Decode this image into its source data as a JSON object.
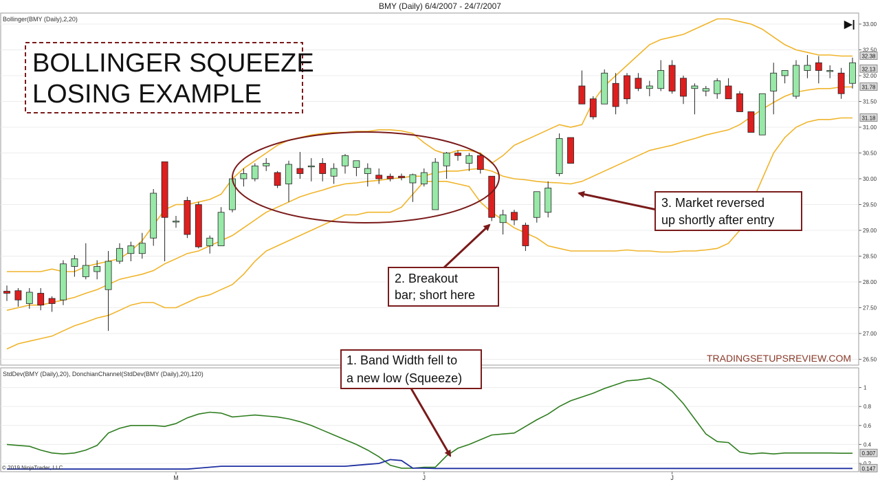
{
  "chart_data": {
    "type": "candlestick",
    "title": "BMY (Daily)  6/4/2007 - 24/7/2007",
    "price_panel": {
      "indicator_label": "Bollinger(BMY (Daily),2,20)",
      "ylim": [
        26.4,
        33.2
      ],
      "y_ticks": [
        "26.50",
        "27.00",
        "27.50",
        "28.00",
        "28.50",
        "29.00",
        "29.50",
        "30.00",
        "30.50",
        "31.00",
        "31.50",
        "32.00",
        "32.50",
        "33.00"
      ],
      "price_markers": [
        {
          "label": "32.38",
          "value": 32.38
        },
        {
          "label": "32.13",
          "value": 32.13
        },
        {
          "label": "31.78",
          "value": 31.78
        },
        {
          "label": "31.18",
          "value": 31.18
        }
      ],
      "candles": [
        {
          "o": 27.82,
          "h": 27.93,
          "l": 27.63,
          "c": 27.78
        },
        {
          "o": 27.83,
          "h": 27.88,
          "l": 27.52,
          "c": 27.65
        },
        {
          "o": 27.58,
          "h": 27.88,
          "l": 27.48,
          "c": 27.8
        },
        {
          "o": 27.78,
          "h": 27.88,
          "l": 27.45,
          "c": 27.55
        },
        {
          "o": 27.68,
          "h": 27.72,
          "l": 27.42,
          "c": 27.58
        },
        {
          "o": 27.65,
          "h": 28.42,
          "l": 27.55,
          "c": 28.35
        },
        {
          "o": 28.3,
          "h": 28.52,
          "l": 28.1,
          "c": 28.45
        },
        {
          "o": 28.1,
          "h": 28.75,
          "l": 28.05,
          "c": 28.32
        },
        {
          "o": 28.2,
          "h": 28.42,
          "l": 28.05,
          "c": 28.3
        },
        {
          "o": 27.85,
          "h": 28.6,
          "l": 27.05,
          "c": 28.4
        },
        {
          "o": 28.4,
          "h": 28.75,
          "l": 28.35,
          "c": 28.65
        },
        {
          "o": 28.55,
          "h": 28.78,
          "l": 28.4,
          "c": 28.7
        },
        {
          "o": 28.55,
          "h": 28.95,
          "l": 28.45,
          "c": 28.75
        },
        {
          "o": 28.85,
          "h": 29.8,
          "l": 28.7,
          "c": 29.72
        },
        {
          "o": 30.33,
          "h": 30.33,
          "l": 28.4,
          "c": 29.25
        },
        {
          "o": 29.18,
          "h": 29.28,
          "l": 29.05,
          "c": 29.18
        },
        {
          "o": 29.58,
          "h": 29.65,
          "l": 28.85,
          "c": 28.92
        },
        {
          "o": 29.5,
          "h": 29.55,
          "l": 28.65,
          "c": 28.68
        },
        {
          "o": 28.7,
          "h": 28.9,
          "l": 28.55,
          "c": 28.85
        },
        {
          "o": 28.7,
          "h": 29.45,
          "l": 28.7,
          "c": 29.35
        },
        {
          "o": 29.4,
          "h": 30.0,
          "l": 29.35,
          "c": 30.0
        },
        {
          "o": 30.0,
          "h": 30.2,
          "l": 29.85,
          "c": 30.1
        },
        {
          "o": 30.0,
          "h": 30.3,
          "l": 29.95,
          "c": 30.25
        },
        {
          "o": 30.25,
          "h": 30.4,
          "l": 30.15,
          "c": 30.3
        },
        {
          "o": 30.12,
          "h": 30.15,
          "l": 29.82,
          "c": 29.87
        },
        {
          "o": 29.9,
          "h": 30.35,
          "l": 29.55,
          "c": 30.28
        },
        {
          "o": 30.2,
          "h": 30.52,
          "l": 30.0,
          "c": 30.1
        },
        {
          "o": 30.25,
          "h": 30.4,
          "l": 29.95,
          "c": 30.25
        },
        {
          "o": 30.3,
          "h": 30.4,
          "l": 29.95,
          "c": 30.1
        },
        {
          "o": 30.05,
          "h": 30.3,
          "l": 29.9,
          "c": 30.2
        },
        {
          "o": 30.25,
          "h": 30.48,
          "l": 30.1,
          "c": 30.45
        },
        {
          "o": 30.22,
          "h": 30.35,
          "l": 30.05,
          "c": 30.35
        },
        {
          "o": 30.1,
          "h": 30.3,
          "l": 29.85,
          "c": 30.2
        },
        {
          "o": 30.07,
          "h": 30.2,
          "l": 29.9,
          "c": 30.0
        },
        {
          "o": 30.05,
          "h": 30.1,
          "l": 29.95,
          "c": 30.0
        },
        {
          "o": 30.05,
          "h": 30.1,
          "l": 29.97,
          "c": 30.02
        },
        {
          "o": 29.92,
          "h": 30.1,
          "l": 29.55,
          "c": 30.08
        },
        {
          "o": 29.9,
          "h": 30.2,
          "l": 29.85,
          "c": 30.12
        },
        {
          "o": 29.4,
          "h": 30.4,
          "l": 29.4,
          "c": 30.32
        },
        {
          "o": 30.25,
          "h": 30.52,
          "l": 30.0,
          "c": 30.5
        },
        {
          "o": 30.5,
          "h": 30.55,
          "l": 30.35,
          "c": 30.45
        },
        {
          "o": 30.3,
          "h": 30.5,
          "l": 30.15,
          "c": 30.45
        },
        {
          "o": 30.45,
          "h": 30.5,
          "l": 30.1,
          "c": 30.18
        },
        {
          "o": 30.05,
          "h": 30.05,
          "l": 29.18,
          "c": 29.25
        },
        {
          "o": 29.15,
          "h": 29.4,
          "l": 28.92,
          "c": 29.3
        },
        {
          "o": 29.35,
          "h": 29.4,
          "l": 29.1,
          "c": 29.2
        },
        {
          "o": 29.1,
          "h": 29.15,
          "l": 28.6,
          "c": 28.7
        },
        {
          "o": 29.25,
          "h": 29.75,
          "l": 29.15,
          "c": 29.75
        },
        {
          "o": 29.35,
          "h": 29.95,
          "l": 29.25,
          "c": 29.82
        },
        {
          "o": 30.1,
          "h": 30.88,
          "l": 30.05,
          "c": 30.78
        },
        {
          "o": 30.8,
          "h": 30.8,
          "l": 30.3,
          "c": 30.3
        },
        {
          "o": 31.8,
          "h": 32.1,
          "l": 31.5,
          "c": 31.45
        },
        {
          "o": 31.55,
          "h": 31.6,
          "l": 31.15,
          "c": 31.2
        },
        {
          "o": 31.45,
          "h": 32.12,
          "l": 31.45,
          "c": 32.05
        },
        {
          "o": 31.85,
          "h": 32.05,
          "l": 31.25,
          "c": 31.4
        },
        {
          "o": 32.0,
          "h": 32.05,
          "l": 31.45,
          "c": 31.55
        },
        {
          "o": 31.95,
          "h": 32.05,
          "l": 31.7,
          "c": 31.75
        },
        {
          "o": 31.75,
          "h": 31.9,
          "l": 31.6,
          "c": 31.8
        },
        {
          "o": 31.75,
          "h": 32.3,
          "l": 31.7,
          "c": 32.1
        },
        {
          "o": 32.2,
          "h": 32.3,
          "l": 31.65,
          "c": 31.7
        },
        {
          "o": 31.95,
          "h": 32.0,
          "l": 31.45,
          "c": 31.6
        },
        {
          "o": 31.75,
          "h": 31.85,
          "l": 31.25,
          "c": 31.8
        },
        {
          "o": 31.7,
          "h": 31.8,
          "l": 31.6,
          "c": 31.75
        },
        {
          "o": 31.65,
          "h": 31.95,
          "l": 31.55,
          "c": 31.9
        },
        {
          "o": 31.8,
          "h": 31.95,
          "l": 31.55,
          "c": 31.55
        },
        {
          "o": 31.65,
          "h": 31.7,
          "l": 31.3,
          "c": 31.3
        },
        {
          "o": 31.3,
          "h": 31.3,
          "l": 30.9,
          "c": 30.9
        },
        {
          "o": 30.85,
          "h": 31.65,
          "l": 30.85,
          "c": 31.65
        },
        {
          "o": 31.7,
          "h": 32.25,
          "l": 31.25,
          "c": 32.05
        },
        {
          "o": 32.0,
          "h": 32.1,
          "l": 31.85,
          "c": 32.1
        },
        {
          "o": 31.6,
          "h": 32.3,
          "l": 31.55,
          "c": 32.2
        },
        {
          "o": 32.1,
          "h": 32.4,
          "l": 31.95,
          "c": 32.2
        },
        {
          "o": 32.25,
          "h": 32.38,
          "l": 31.85,
          "c": 32.1
        },
        {
          "o": 32.1,
          "h": 32.2,
          "l": 31.95,
          "c": 32.1
        },
        {
          "o": 32.05,
          "h": 32.15,
          "l": 31.55,
          "c": 31.65
        },
        {
          "o": 31.85,
          "h": 32.35,
          "l": 31.75,
          "c": 32.25
        }
      ],
      "bollinger_upper": [
        28.2,
        28.2,
        28.2,
        28.2,
        28.25,
        28.2,
        28.2,
        28.3,
        28.35,
        28.4,
        28.45,
        28.6,
        28.8,
        29.1,
        29.4,
        29.5,
        29.5,
        29.55,
        29.6,
        29.7,
        30.0,
        30.2,
        30.35,
        30.5,
        30.65,
        30.75,
        30.8,
        30.85,
        30.88,
        30.9,
        30.9,
        30.92,
        30.92,
        30.95,
        30.95,
        30.93,
        30.88,
        30.7,
        30.55,
        30.48,
        30.55,
        30.55,
        30.5,
        30.3,
        30.45,
        30.65,
        30.75,
        30.85,
        30.95,
        31.05,
        31.0,
        31.05,
        31.5,
        31.8,
        32.0,
        32.2,
        32.4,
        32.6,
        32.7,
        32.75,
        32.8,
        32.9,
        33.0,
        33.1,
        33.1,
        33.05,
        33.0,
        32.9,
        32.75,
        32.6,
        32.5,
        32.45,
        32.4,
        32.4,
        32.38,
        32.38
      ],
      "bollinger_middle": [
        27.45,
        27.5,
        27.55,
        27.55,
        27.6,
        27.65,
        27.7,
        27.78,
        27.85,
        27.95,
        28.05,
        28.1,
        28.15,
        28.22,
        28.35,
        28.45,
        28.55,
        28.6,
        28.7,
        28.8,
        28.9,
        29.05,
        29.2,
        29.35,
        29.45,
        29.55,
        29.65,
        29.72,
        29.78,
        29.85,
        29.9,
        29.92,
        29.95,
        29.97,
        30.0,
        30.02,
        30.05,
        30.05,
        30.12,
        30.15,
        30.15,
        30.18,
        30.2,
        30.15,
        30.05,
        30.0,
        29.98,
        29.95,
        29.93,
        29.92,
        29.9,
        29.95,
        30.05,
        30.15,
        30.25,
        30.35,
        30.45,
        30.55,
        30.6,
        30.65,
        30.72,
        30.78,
        30.85,
        30.9,
        30.95,
        31.05,
        31.2,
        31.35,
        31.48,
        31.6,
        31.68,
        31.72,
        31.75,
        31.75,
        31.78,
        31.78
      ],
      "bollinger_lower": [
        26.7,
        26.8,
        26.85,
        26.9,
        26.95,
        27.05,
        27.15,
        27.22,
        27.3,
        27.35,
        27.45,
        27.55,
        27.6,
        27.6,
        27.5,
        27.5,
        27.6,
        27.7,
        27.75,
        27.85,
        27.95,
        28.15,
        28.4,
        28.6,
        28.7,
        28.8,
        28.9,
        29.0,
        29.1,
        29.2,
        29.3,
        29.3,
        29.35,
        29.35,
        29.35,
        29.45,
        29.7,
        29.95,
        29.95,
        29.95,
        29.9,
        29.85,
        29.55,
        29.35,
        29.2,
        29.05,
        28.95,
        28.85,
        28.7,
        28.65,
        28.6,
        28.6,
        28.6,
        28.6,
        28.6,
        28.62,
        28.6,
        28.6,
        28.58,
        28.58,
        28.6,
        28.6,
        28.62,
        28.65,
        28.75,
        29.0,
        29.5,
        30.0,
        30.5,
        30.8,
        31.0,
        31.1,
        31.15,
        31.15,
        31.18,
        31.18
      ]
    },
    "lower_panel": {
      "indicator_label": "StdDev(BMY (Daily),20), DonchianChannel(StdDev(BMY (Daily),20),120)",
      "ylim": [
        0.12,
        1.2
      ],
      "y_ticks": [
        "0.2",
        "0.4",
        "0.6",
        "0.8",
        "1"
      ],
      "price_markers": [
        {
          "label": "0.307",
          "value": 0.307
        },
        {
          "label": "0.147",
          "value": 0.147
        }
      ],
      "stddev": [
        0.4,
        0.39,
        0.38,
        0.34,
        0.31,
        0.3,
        0.31,
        0.34,
        0.39,
        0.52,
        0.57,
        0.6,
        0.6,
        0.6,
        0.59,
        0.62,
        0.68,
        0.72,
        0.74,
        0.73,
        0.69,
        0.7,
        0.71,
        0.7,
        0.69,
        0.67,
        0.64,
        0.6,
        0.55,
        0.5,
        0.45,
        0.4,
        0.34,
        0.27,
        0.18,
        0.15,
        0.15,
        0.16,
        0.16,
        0.28,
        0.36,
        0.4,
        0.45,
        0.5,
        0.51,
        0.52,
        0.59,
        0.66,
        0.72,
        0.8,
        0.86,
        0.9,
        0.94,
        0.99,
        1.03,
        1.07,
        1.08,
        1.1,
        1.05,
        0.96,
        0.83,
        0.67,
        0.51,
        0.43,
        0.42,
        0.32,
        0.3,
        0.31,
        0.3,
        0.31,
        0.31,
        0.31,
        0.31,
        0.31,
        0.307,
        0.307
      ],
      "donchian_low": [
        0.14,
        0.14,
        0.14,
        0.14,
        0.14,
        0.14,
        0.14,
        0.14,
        0.14,
        0.14,
        0.14,
        0.14,
        0.14,
        0.14,
        0.14,
        0.14,
        0.14,
        0.15,
        0.16,
        0.17,
        0.17,
        0.17,
        0.17,
        0.17,
        0.17,
        0.17,
        0.17,
        0.17,
        0.17,
        0.17,
        0.17,
        0.18,
        0.19,
        0.2,
        0.24,
        0.23,
        0.15,
        0.15,
        0.147,
        0.147,
        0.147,
        0.147,
        0.147,
        0.147,
        0.147,
        0.147,
        0.147,
        0.147,
        0.147,
        0.147,
        0.147,
        0.147,
        0.147,
        0.147,
        0.147,
        0.147,
        0.147,
        0.147,
        0.147,
        0.147,
        0.147,
        0.147,
        0.147,
        0.147,
        0.147,
        0.147,
        0.147,
        0.147,
        0.147,
        0.147,
        0.147,
        0.147,
        0.147,
        0.147,
        0.147,
        0.147
      ]
    },
    "x_ticks": [
      {
        "label": "M",
        "index": 15
      },
      {
        "label": "J",
        "index": 37
      },
      {
        "label": "J",
        "index": 59
      }
    ],
    "colors": {
      "up_candle": "#98e8a8",
      "down_candle": "#dd1f1f",
      "bollinger": "#f0b429",
      "stddev": "#2e7d1f",
      "donchian": "#1e2fa0",
      "annotation": "#7a1a1a"
    },
    "annotations": {
      "title_box_line1": "BOLLINGER SQUEEZE",
      "title_box_line2": "LOSING EXAMPLE",
      "note1_line1": "1. Band Width fell to",
      "note1_line2": "a new low (Squeeze)",
      "note2_line1": "2. Breakout",
      "note2_line2": "bar; short here",
      "note3_line1": "3. Market reversed",
      "note3_line2": "up shortly after entry",
      "watermark": "TRADINGSETUPSREVIEW.COM",
      "copyright": "© 2019 NinjaTrader, LLC",
      "nav_glyph": "▶|"
    }
  }
}
